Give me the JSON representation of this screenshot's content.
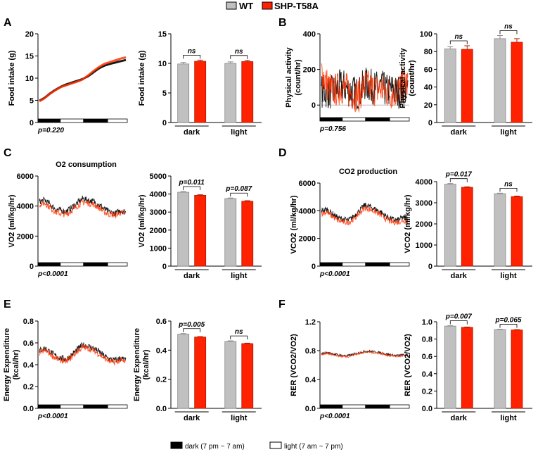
{
  "legend": {
    "wt": "WT",
    "shp": "SHP-T58A",
    "dark": "dark (7 pm ~ 7 am)",
    "light": "light (7 am ~ 7 pm)"
  },
  "colors": {
    "wt": "#c0c0c0",
    "shp": "#ff2200",
    "wt_line": "#000000",
    "shp_line": "#ff3300"
  },
  "chart_data": [
    {
      "panel": "A",
      "type": "line",
      "ylabel": [
        "Food intake (g)"
      ],
      "title": "",
      "ylim": [
        0,
        20
      ],
      "yticks": [
        0,
        5,
        10,
        15,
        20
      ],
      "pvalue": "p=0.220",
      "wt": [
        4.9,
        5.6,
        6.6,
        7.4,
        8.1,
        8.6,
        9.0,
        9.4,
        9.8,
        10.4,
        11.3,
        12.2,
        12.8,
        13.2,
        13.5,
        13.8,
        14.1
      ],
      "shp": [
        4.8,
        5.5,
        6.5,
        7.3,
        8.0,
        8.4,
        8.8,
        9.2,
        9.7,
        10.6,
        11.6,
        12.5,
        13.2,
        13.6,
        14.0,
        14.4,
        14.7
      ]
    },
    {
      "panel": "A",
      "type": "bar",
      "ylabel": [
        "Food intake (g)"
      ],
      "ylim": [
        0,
        15
      ],
      "yticks": [
        0,
        5,
        10,
        15
      ],
      "categories": [
        "dark",
        "light"
      ],
      "wt": [
        9.9,
        10.0
      ],
      "wt_err": [
        0.25,
        0.25
      ],
      "shp": [
        10.35,
        10.3
      ],
      "shp_err": [
        0.2,
        0.2
      ],
      "sig": [
        "ns",
        "ns"
      ]
    },
    {
      "panel": "B",
      "type": "line",
      "ylabel": [
        "Physical activity",
        "(count/hr)"
      ],
      "title": "",
      "ylim": [
        -90,
        400
      ],
      "yticks": [
        0,
        200,
        400
      ],
      "pvalue": "p=0.756",
      "wt": [
        80,
        75,
        70,
        95,
        110,
        85,
        70,
        65,
        120,
        110,
        95,
        105,
        80,
        85,
        70,
        90,
        85
      ],
      "shp": [
        190,
        120,
        75,
        90,
        100,
        80,
        60,
        55,
        115,
        95,
        85,
        90,
        75,
        70,
        80,
        110,
        120
      ]
    },
    {
      "panel": "B",
      "type": "bar",
      "ylabel": [
        "Physical activity",
        "(count/hr)"
      ],
      "ylim": [
        0,
        100
      ],
      "yticks": [
        0,
        20,
        40,
        60,
        80,
        100
      ],
      "categories": [
        "dark",
        "light"
      ],
      "wt": [
        83,
        94.5
      ],
      "wt_err": [
        2.5,
        3.5
      ],
      "shp": [
        82.5,
        90.5
      ],
      "shp_err": [
        4,
        4
      ],
      "sig": [
        "ns",
        "ns"
      ]
    },
    {
      "panel": "C",
      "type": "line",
      "ylabel": [
        "VO2 (ml/kg/hr)"
      ],
      "title": "O2 consumption",
      "ylim": [
        0,
        6000
      ],
      "yticks": [
        0,
        2000,
        4000,
        6000
      ],
      "pvalue": "p<0.0001",
      "wt": [
        4300,
        4400,
        4100,
        3800,
        3700,
        3650,
        3900,
        4200,
        4500,
        4400,
        4300,
        4100,
        3800,
        3600,
        3500,
        3700,
        3600
      ],
      "shp": [
        4100,
        4200,
        3900,
        3600,
        3500,
        3450,
        3700,
        4000,
        4250,
        4200,
        4100,
        3900,
        3600,
        3450,
        3400,
        3550,
        3500
      ]
    },
    {
      "panel": "C",
      "type": "bar",
      "ylabel": [
        "VO2 (ml/kg/hr)"
      ],
      "ylim": [
        0,
        5000
      ],
      "yticks": [
        0,
        1000,
        2000,
        3000,
        4000,
        5000
      ],
      "categories": [
        "dark",
        "light"
      ],
      "wt": [
        4100,
        3750
      ],
      "wt_err": [
        40,
        30
      ],
      "shp": [
        3930,
        3600
      ],
      "shp_err": [
        30,
        30
      ],
      "sig": [
        "p=0.011",
        "p=0.087"
      ]
    },
    {
      "panel": "D",
      "type": "line",
      "ylabel": [
        "VCO2 (ml/kg/hr)"
      ],
      "title": "CO2 production",
      "ylim": [
        0,
        6000
      ],
      "yticks": [
        0,
        2000,
        4000,
        6000
      ],
      "pvalue": "p<0.0001",
      "wt": [
        4000,
        4100,
        3800,
        3500,
        3400,
        3300,
        3600,
        4000,
        4400,
        4300,
        4100,
        3900,
        3600,
        3400,
        3300,
        3500,
        3400
      ],
      "shp": [
        3800,
        3900,
        3600,
        3300,
        3200,
        3150,
        3400,
        3800,
        4200,
        4100,
        3900,
        3700,
        3400,
        3200,
        3150,
        3300,
        3250
      ]
    },
    {
      "panel": "D",
      "type": "bar",
      "ylabel": [
        "VCO2 (ml/kg/hr)"
      ],
      "ylim": [
        0,
        4000
      ],
      "yticks": [
        0,
        1000,
        2000,
        3000,
        4000
      ],
      "categories": [
        "dark",
        "light"
      ],
      "wt": [
        3880,
        3430
      ],
      "wt_err": [
        30,
        25
      ],
      "shp": [
        3730,
        3290
      ],
      "shp_err": [
        25,
        25
      ],
      "sig": [
        "p=0.017",
        "ns"
      ]
    },
    {
      "panel": "E",
      "type": "line",
      "ylabel": [
        "Energy Expenditure",
        "(kcal/hr)"
      ],
      "title": "",
      "ylim": [
        0,
        0.8
      ],
      "yticks": [
        0,
        0.2,
        0.4,
        0.6,
        0.8
      ],
      "pvalue": "p<0.0001",
      "wt": [
        0.53,
        0.55,
        0.52,
        0.48,
        0.46,
        0.45,
        0.49,
        0.54,
        0.58,
        0.57,
        0.55,
        0.52,
        0.48,
        0.45,
        0.44,
        0.46,
        0.44
      ],
      "shp": [
        0.51,
        0.53,
        0.5,
        0.46,
        0.44,
        0.43,
        0.47,
        0.52,
        0.56,
        0.55,
        0.53,
        0.5,
        0.46,
        0.43,
        0.42,
        0.44,
        0.42
      ]
    },
    {
      "panel": "E",
      "type": "bar",
      "ylabel": [
        "Energy Expenditure",
        "(kcal/hr)"
      ],
      "ylim": [
        0,
        0.6
      ],
      "yticks": [
        0,
        0.2,
        0.4,
        0.6
      ],
      "categories": [
        "dark",
        "light"
      ],
      "wt": [
        0.51,
        0.46
      ],
      "wt_err": [
        0.004,
        0.004
      ],
      "shp": [
        0.49,
        0.445
      ],
      "shp_err": [
        0.003,
        0.003
      ],
      "sig": [
        "p=0.005",
        "ns"
      ]
    },
    {
      "panel": "F",
      "type": "line",
      "ylabel": [
        "RER (VCO2/VO2)"
      ],
      "title": "",
      "ylim": [
        0,
        1.2
      ],
      "yticks": [
        0,
        0.4,
        0.8,
        1.2
      ],
      "pvalue": "p<0.0001",
      "wt": [
        0.76,
        0.77,
        0.76,
        0.74,
        0.73,
        0.73,
        0.75,
        0.77,
        0.79,
        0.79,
        0.78,
        0.77,
        0.75,
        0.74,
        0.73,
        0.74,
        0.74
      ],
      "shp": [
        0.75,
        0.76,
        0.75,
        0.73,
        0.72,
        0.72,
        0.74,
        0.76,
        0.78,
        0.78,
        0.77,
        0.76,
        0.74,
        0.73,
        0.72,
        0.73,
        0.73
      ]
    },
    {
      "panel": "F",
      "type": "bar",
      "ylabel": [
        "RER (VCO2/VO2)"
      ],
      "ylim": [
        0,
        1.0
      ],
      "yticks": [
        0,
        0.2,
        0.4,
        0.6,
        0.8,
        1.0
      ],
      "categories": [
        "dark",
        "light"
      ],
      "wt": [
        0.95,
        0.91
      ],
      "wt_err": [
        0.004,
        0.004
      ],
      "shp": [
        0.935,
        0.905
      ],
      "shp_err": [
        0.004,
        0.004
      ],
      "sig": [
        "p=0.007",
        "p=0.065"
      ]
    }
  ],
  "light_cycle": [
    "dark",
    "light",
    "dark",
    "light"
  ]
}
